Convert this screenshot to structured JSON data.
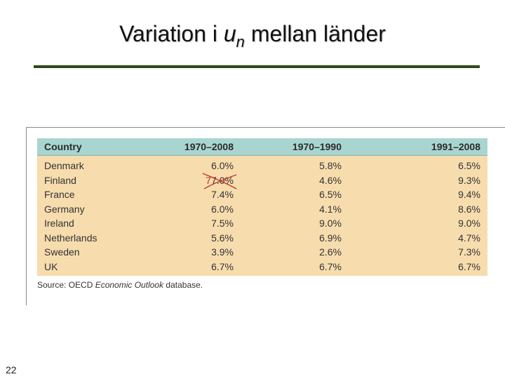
{
  "slide": {
    "title_before": "Variation i ",
    "title_var": "u",
    "title_sub": "n",
    "title_after": " mellan länder",
    "page_number": "22"
  },
  "table": {
    "headers": [
      "Country",
      "1970–2008",
      "1970–1990",
      "1991–2008"
    ],
    "rows": [
      [
        "Denmark",
        "6.0%",
        "5.8%",
        "6.5%"
      ],
      [
        "Finland",
        "7.0%",
        "4.6%",
        "9.3%"
      ],
      [
        "France",
        "7.4%",
        "6.5%",
        "9.4%"
      ],
      [
        "Germany",
        "6.0%",
        "4.1%",
        "8.6%"
      ],
      [
        "Ireland",
        "7.5%",
        "9.0%",
        "9.0%"
      ],
      [
        "Netherlands",
        "5.6%",
        "6.9%",
        "4.7%"
      ],
      [
        "Sweden",
        "3.9%",
        "2.6%",
        "7.3%"
      ],
      [
        "UK",
        "6.7%",
        "6.7%",
        "6.7%"
      ]
    ],
    "finland_correction": "7"
  },
  "source": {
    "prefix": "Source: OECD ",
    "italic": "Economic Outlook",
    "suffix": " database."
  },
  "colors": {
    "table_bg": "#f7dcae",
    "header_bg": "#a9d5d0",
    "title_rule": "#2d4a1c",
    "annotation": "#c0392b"
  }
}
